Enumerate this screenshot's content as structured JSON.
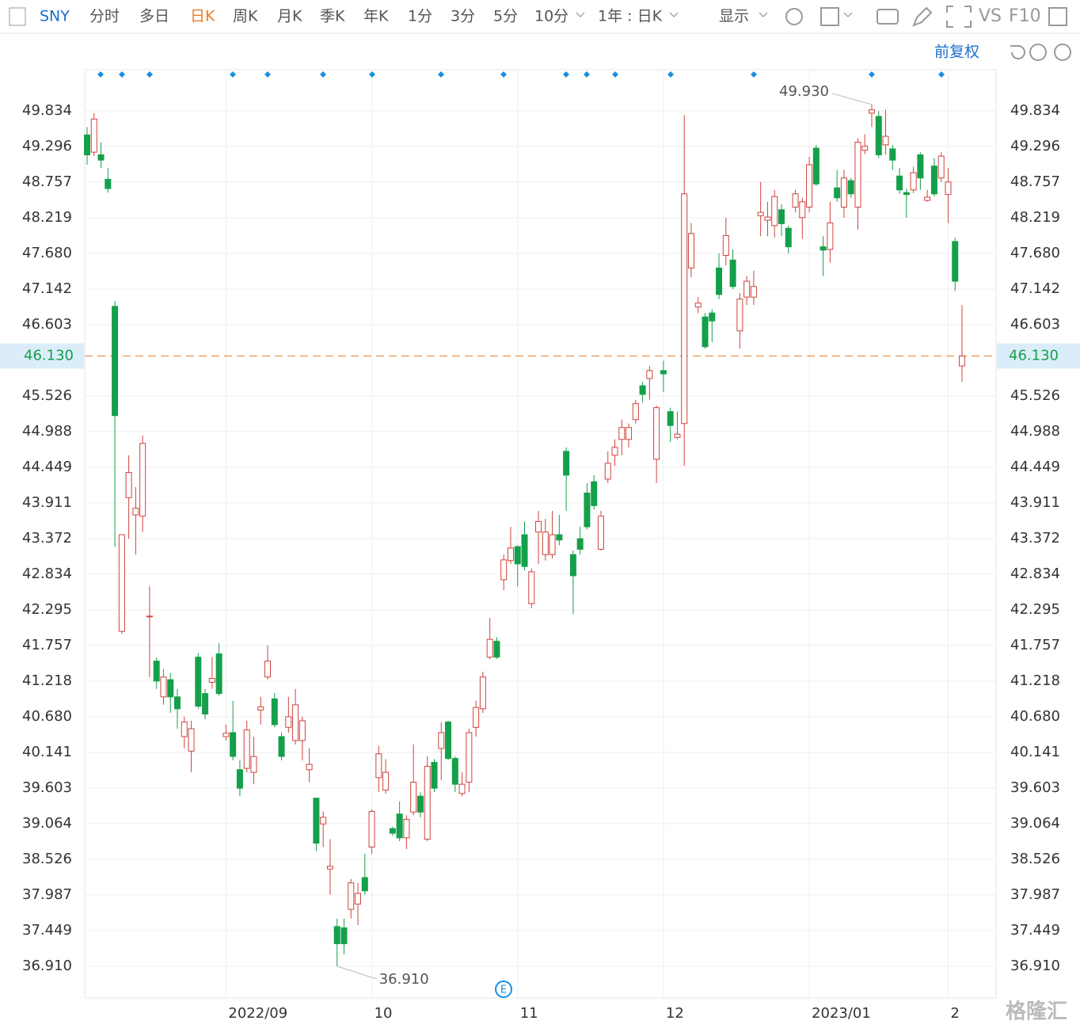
{
  "toolbar": {
    "symbol": "SNY",
    "periods": [
      "分时",
      "多日",
      "日K",
      "周K",
      "月K",
      "季K",
      "年K",
      "1分",
      "3分",
      "5分",
      "10分"
    ],
    "active": "日K",
    "range": "1年 : 日K",
    "display": "显示",
    "vs": "VS",
    "f10": "F10",
    "adjust": "前复权",
    "watermark": "格隆汇"
  },
  "chart_data": {
    "type": "candlestick",
    "categories": [
      null,
      null,
      null,
      null,
      null,
      null,
      null,
      null,
      null,
      null,
      null,
      null,
      null,
      null,
      null,
      null,
      null,
      null,
      null,
      null,
      "2022/09",
      null,
      null,
      null,
      null,
      null,
      null,
      null,
      null,
      null,
      null,
      null,
      null,
      null,
      null,
      null,
      null,
      null,
      null,
      null,
      null,
      "10",
      null,
      null,
      null,
      null,
      null,
      null,
      null,
      null,
      null,
      null,
      null,
      null,
      null,
      null,
      null,
      null,
      null,
      null,
      null,
      null,
      "11",
      null,
      null,
      null,
      null,
      null,
      null,
      null,
      null,
      null,
      null,
      null,
      null,
      null,
      null,
      null,
      null,
      null,
      null,
      null,
      null,
      "12",
      null,
      null,
      null,
      null,
      null,
      null,
      null,
      null,
      null,
      null,
      null,
      null,
      null,
      null,
      null,
      null,
      null,
      null,
      null,
      null,
      "2023/01",
      null,
      null,
      null,
      null,
      null,
      null,
      null,
      null,
      null,
      null,
      null,
      null,
      null,
      null,
      null,
      null,
      null,
      null,
      null,
      "2",
      null,
      null
    ],
    "open": [
      49.47,
      49.21,
      49.17,
      48.8,
      46.88,
      41.97,
      43.99,
      43.73,
      43.71,
      42.2,
      41.52,
      40.98,
      41.24,
      40.98,
      40.38,
      40.16,
      41.58,
      41.03,
      41.2,
      41.63,
      40.38,
      40.44,
      39.88,
      39.9,
      39.84,
      40.78,
      41.28,
      40.95,
      40.38,
      40.52,
      40.32,
      40.32,
      39.88,
      39.45,
      39.06,
      38.38,
      37.51,
      37.49,
      37.77,
      37.85,
      38.25,
      38.71,
      39.76,
      39.57,
      38.99,
      39.21,
      38.85,
      39.24,
      39.48,
      38.83,
      39.99,
      40.2,
      40.6,
      40.05,
      39.52,
      39.69,
      40.52,
      40.8,
      41.58,
      41.82,
      42.75,
      43.04,
      43.25,
      43.43,
      42.39,
      43.47,
      43.13,
      43.13,
      43.43,
      44.69,
      43.13,
      43.37,
      44.06,
      44.23,
      43.21,
      44.27,
      44.63,
      44.87,
      44.87,
      45.17,
      45.68,
      45.79,
      44.57,
      45.91,
      45.29,
      44.9,
      45.11,
      47.46,
      46.87,
      46.72,
      46.78,
      47.46,
      47.65,
      47.58,
      46.51,
      47.02,
      47.02,
      48.25,
      48.18,
      48.1,
      48.34,
      48.06,
      48.38,
      48.22,
      48.38,
      49.27,
      47.78,
      47.74,
      48.67,
      48.38,
      48.78,
      48.38,
      49.24,
      49.8,
      49.75,
      49.32,
      49.26,
      48.85,
      48.6,
      48.64,
      49.17,
      48.48,
      49.0,
      48.82,
      48.57,
      47.86,
      45.98
    ],
    "high": [
      49.59,
      49.8,
      49.36,
      48.97,
      46.96,
      43.43,
      44.63,
      44.15,
      44.93,
      42.65,
      41.58,
      41.4,
      41.34,
      41.1,
      40.68,
      40.62,
      41.64,
      41.1,
      41.58,
      41.79,
      40.56,
      40.92,
      40.02,
      40.62,
      40.38,
      40.98,
      41.76,
      41.04,
      40.44,
      40.98,
      41.1,
      40.68,
      40.2,
      39.45,
      39.25,
      38.83,
      37.63,
      37.63,
      38.23,
      38.17,
      38.61,
      39.28,
      40.24,
      40.04,
      39.02,
      39.4,
      39.19,
      40.26,
      39.54,
      40.08,
      40.04,
      40.6,
      40.62,
      40.08,
      39.84,
      40.5,
      40.92,
      41.36,
      42.17,
      41.88,
      43.13,
      43.55,
      43.27,
      43.63,
      42.92,
      43.79,
      43.67,
      43.79,
      43.73,
      44.75,
      43.19,
      43.55,
      44.21,
      44.33,
      43.79,
      44.69,
      44.87,
      45.17,
      45.11,
      45.47,
      45.74,
      45.98,
      45.38,
      46.06,
      45.35,
      45.29,
      49.77,
      48.14,
      47.02,
      46.78,
      46.84,
      47.68,
      48.22,
      47.74,
      47.08,
      47.34,
      47.42,
      48.76,
      48.46,
      48.64,
      48.42,
      48.1,
      48.64,
      48.52,
      49.14,
      49.32,
      47.94,
      48.46,
      48.94,
      48.94,
      48.82,
      49.42,
      49.48,
      49.93,
      49.83,
      49.85,
      49.32,
      48.97,
      48.66,
      48.99,
      49.21,
      48.64,
      49.12,
      49.21,
      48.97,
      47.92,
      46.9
    ],
    "low": [
      49.02,
      49.15,
      48.97,
      48.6,
      43.25,
      41.93,
      43.37,
      43.13,
      43.47,
      41.28,
      41.1,
      40.86,
      40.74,
      40.5,
      40.2,
      39.84,
      40.8,
      40.64,
      41.1,
      41.0,
      40.32,
      40.02,
      39.48,
      39.84,
      39.66,
      40.56,
      41.24,
      40.52,
      40.02,
      40.44,
      40.26,
      40.02,
      39.69,
      38.65,
      38.71,
      37.99,
      36.91,
      37.09,
      37.63,
      37.53,
      37.99,
      38.61,
      39.54,
      39.52,
      38.88,
      38.8,
      38.68,
      39.19,
      39.16,
      38.8,
      39.54,
      39.72,
      40.02,
      39.54,
      39.48,
      39.54,
      40.38,
      40.74,
      41.55,
      41.55,
      42.59,
      42.99,
      42.65,
      42.89,
      42.32,
      42.99,
      43.04,
      43.07,
      43.27,
      43.79,
      42.23,
      43.13,
      43.51,
      43.81,
      43.19,
      44.21,
      44.47,
      44.63,
      44.75,
      45.11,
      45.43,
      45.47,
      44.21,
      45.59,
      44.83,
      44.87,
      44.47,
      47.32,
      46.78,
      46.24,
      46.34,
      46.99,
      47.5,
      47.14,
      46.24,
      46.9,
      46.9,
      47.94,
      47.94,
      47.92,
      47.94,
      47.68,
      48.3,
      47.9,
      48.3,
      48.7,
      47.34,
      47.54,
      48.46,
      48.22,
      48.52,
      48.04,
      49.18,
      49.59,
      49.12,
      49.17,
      48.94,
      48.58,
      48.22,
      48.59,
      48.64,
      48.46,
      48.54,
      48.76,
      48.14,
      47.11,
      45.74
    ],
    "close": [
      49.17,
      49.71,
      49.09,
      48.66,
      45.23,
      43.43,
      44.37,
      43.83,
      44.81,
      42.2,
      41.22,
      41.28,
      40.98,
      40.8,
      40.6,
      40.5,
      40.84,
      40.72,
      41.26,
      41.03,
      40.43,
      40.08,
      39.6,
      40.48,
      40.08,
      40.83,
      41.52,
      40.56,
      40.08,
      40.68,
      40.86,
      40.62,
      39.96,
      38.77,
      39.16,
      38.42,
      37.25,
      37.25,
      38.17,
      38.01,
      38.05,
      39.25,
      40.12,
      39.84,
      38.92,
      38.85,
      39.13,
      39.69,
      39.24,
      39.93,
      39.6,
      40.44,
      40.05,
      39.66,
      39.66,
      40.44,
      40.82,
      41.28,
      41.85,
      41.58,
      43.05,
      43.23,
      42.99,
      42.95,
      42.87,
      43.63,
      43.47,
      43.43,
      43.35,
      44.33,
      42.81,
      43.21,
      43.55,
      43.87,
      43.71,
      44.51,
      44.75,
      45.05,
      45.05,
      45.41,
      45.55,
      45.91,
      45.35,
      45.86,
      45.08,
      44.95,
      48.58,
      47.98,
      46.93,
      46.27,
      46.66,
      47.06,
      47.95,
      47.18,
      46.99,
      47.26,
      47.18,
      48.3,
      48.23,
      48.54,
      48.13,
      47.78,
      48.58,
      48.46,
      49.02,
      48.73,
      47.73,
      48.14,
      48.52,
      48.82,
      48.58,
      49.36,
      49.3,
      49.85,
      49.17,
      49.45,
      49.09,
      48.64,
      48.57,
      48.9,
      48.82,
      48.53,
      48.58,
      49.15,
      48.76,
      47.26,
      46.13
    ],
    "up_color": "#d0433b",
    "down_color": "#14a04a",
    "last_color": "#f0a060",
    "grid": true,
    "ylim": [
      36.431,
      50.456
    ],
    "yticks": [
      49.834,
      49.296,
      48.757,
      48.219,
      {
        "value": 47.68,
        "label": "47.680"
      },
      47.142,
      46.603,
      45.526,
      44.988,
      44.449,
      43.911,
      43.372,
      42.834,
      42.295,
      41.757,
      41.218,
      {
        "value": 40.68,
        "label": "40.680"
      },
      40.141,
      39.603,
      39.064,
      38.526,
      37.987,
      37.449,
      {
        "value": 36.91,
        "label": "36.910"
      }
    ],
    "last_price": {
      "value": 46.13,
      "label": "46.130"
    },
    "high_label": {
      "value": 49.93,
      "label": "49.930"
    },
    "low_label": {
      "value": 36.91,
      "label": "36.910"
    }
  }
}
